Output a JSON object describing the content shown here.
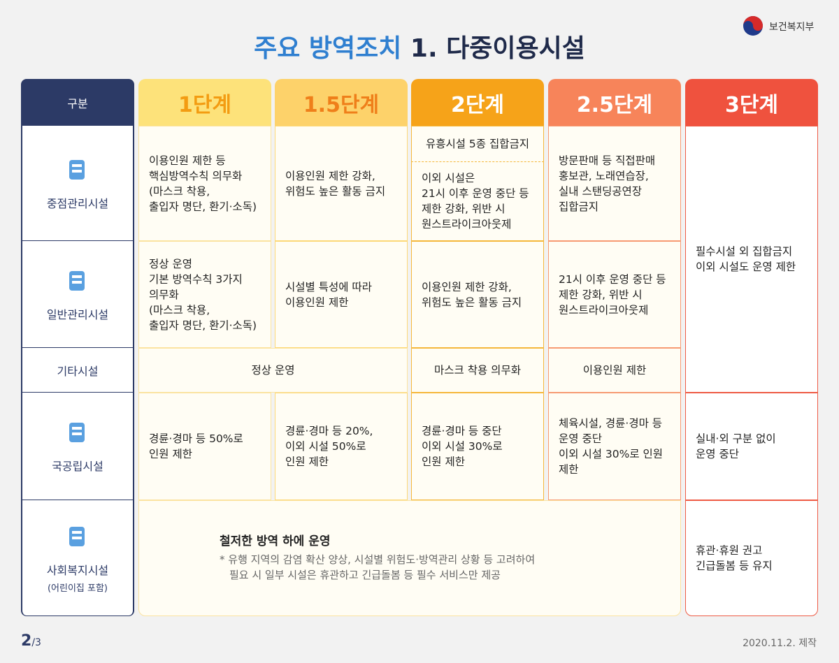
{
  "header": {
    "title_highlight": "주요 방역조치",
    "title_rest": "1. 다중이용시설",
    "ministry": "보건복지부"
  },
  "table": {
    "corner": "구분",
    "columns": [
      "1단계",
      "1.5단계",
      "2단계",
      "2.5단계",
      "3단계"
    ],
    "rows": [
      {
        "label": "중점관리시설"
      },
      {
        "label": "일반관리시설"
      },
      {
        "label": "기타시설"
      },
      {
        "label": "국공립시설"
      },
      {
        "label": "사회복지시설",
        "sub": "(어린이집 포함)"
      }
    ],
    "cells": [
      {
        "lines": [
          "이용인원 제한 등",
          "핵심방역수칙 의무화",
          "(마스크 착용,",
          "출입자 명단, 환기·소독)"
        ]
      },
      {
        "lines": [
          "이용인원 제한 강화,",
          "위험도 높은 활동 금지"
        ]
      },
      {
        "lines": [
          "유흥시설 5종 집합금지"
        ]
      },
      {
        "lines": [
          "이외 시설은",
          "21시 이후 운영 중단 등",
          "제한 강화, 위반 시",
          "원스트라이크아웃제"
        ]
      },
      {
        "lines": [
          "방문판매 등 직접판매",
          "홍보관, 노래연습장,",
          "실내 스탠딩공연장",
          "집합금지"
        ]
      },
      {
        "lines": [
          "필수시설 외 집합금지",
          "이외 시설도 운영 제한"
        ]
      },
      {
        "lines": [
          "정상 운영",
          "기본 방역수칙 3가지",
          "의무화",
          "(마스크 착용,",
          "출입자 명단, 환기·소독)"
        ]
      },
      {
        "lines": [
          "시설별 특성에 따라",
          "이용인원 제한"
        ]
      },
      {
        "lines": [
          "이용인원 제한 강화,",
          "위험도 높은 활동 금지"
        ]
      },
      {
        "lines": [
          "21시 이후 운영 중단 등",
          "제한 강화, 위반 시",
          "원스트라이크아웃제"
        ]
      },
      {
        "lines": [
          "정상 운영"
        ]
      },
      {
        "lines": [
          "마스크 착용 의무화"
        ]
      },
      {
        "lines": [
          "이용인원 제한"
        ]
      },
      {
        "lines": [
          "경륜·경마 등 50%로",
          "인원 제한"
        ]
      },
      {
        "lines": [
          "경륜·경마 등 20%,",
          "이외 시설 50%로",
          "인원 제한"
        ]
      },
      {
        "lines": [
          "경륜·경마 등 중단",
          "이외 시설 30%로",
          "인원 제한"
        ]
      },
      {
        "lines": [
          "체육시설, 경륜·경마 등",
          "운영 중단",
          "이외 시설 30%로 인원",
          "제한"
        ]
      },
      {
        "lines": [
          "실내·외 구분 없이",
          "운영 중단"
        ]
      },
      {
        "lines": [
          "철저한 방역 하에 운영"
        ],
        "note": [
          "* 유행 지역의 감염 확산 양상, 시설별 위험도·방역관리 상황 등 고려하여",
          "필요 시 일부 시설은 휴관하고 긴급돌봄 등 필수 서비스만 제공"
        ]
      },
      {
        "lines": [
          "휴관·휴원 권고",
          "긴급돌봄 등 유지"
        ]
      }
    ]
  },
  "footer": {
    "page": "2",
    "total": "/3",
    "date": "2020.11.2. 제작"
  }
}
